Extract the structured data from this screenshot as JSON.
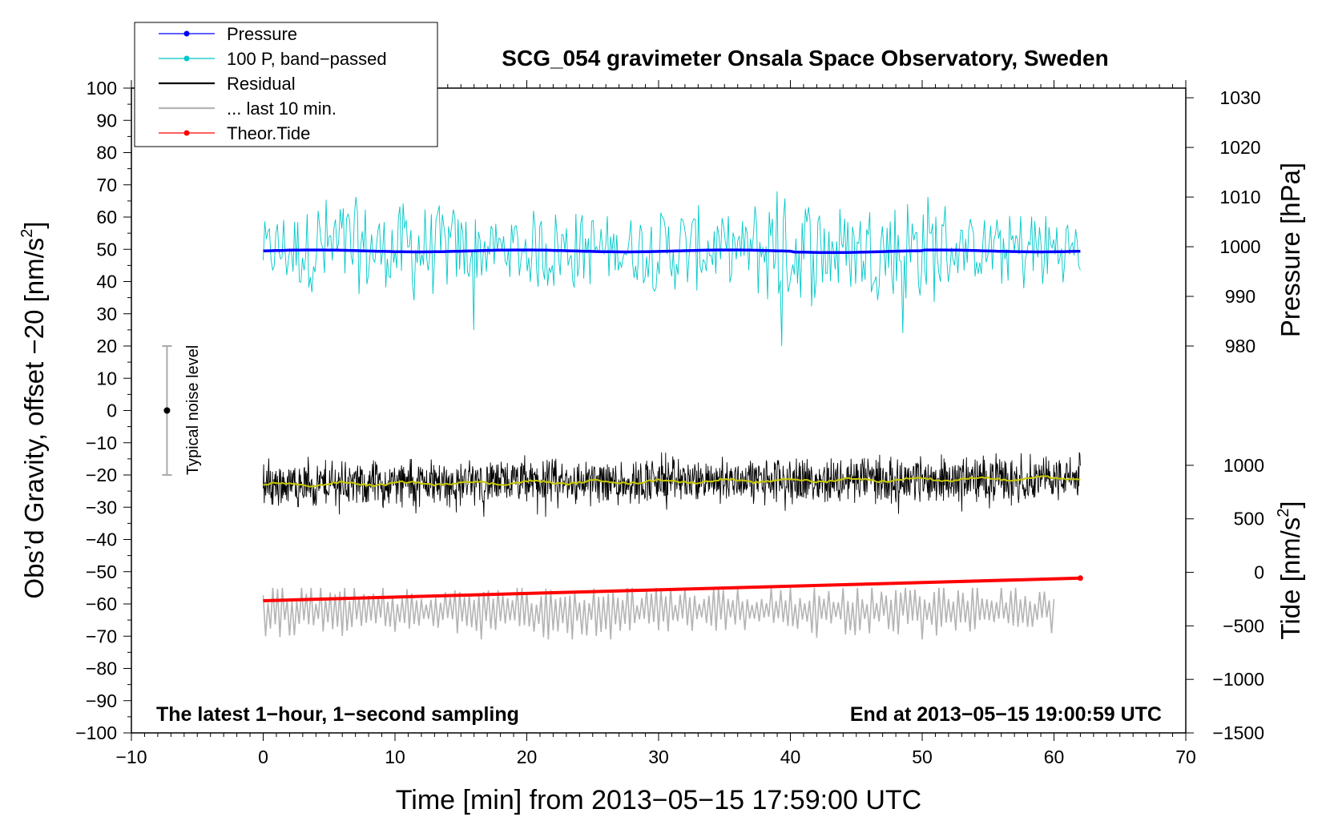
{
  "chart_data": {
    "type": "line",
    "title": "SCG_054 gravimeter Onsala Space Observatory, Sweden",
    "xlabel": "Time [min] from 2013−05−15 17:59:00 UTC",
    "ylabel_left": "Obs’d Gravity, offset −20 [nm/s",
    "ylabel_left_sup": "2",
    "ylabel_left_end": "]",
    "ylabel_right_pressure": "Pressure [hPa]",
    "ylabel_right_tide": "Tide [nm/s",
    "ylabel_right_tide_sup": "2",
    "ylabel_right_tide_end": "]",
    "xlim": [
      -10,
      70
    ],
    "ylim": [
      -100,
      100
    ],
    "xticks": [
      -10,
      0,
      10,
      20,
      30,
      40,
      50,
      60,
      70
    ],
    "yticks": [
      -100,
      -90,
      -80,
      -70,
      -60,
      -50,
      -40,
      -30,
      -20,
      -10,
      0,
      10,
      20,
      30,
      40,
      50,
      60,
      70,
      80,
      90,
      100
    ],
    "pressure_axis": {
      "ticks": [
        980,
        990,
        1000,
        1010,
        1020,
        1030
      ],
      "map": {
        "v1": 980,
        "y1": 20,
        "v2": 1030,
        "y2": 97
      }
    },
    "tide_axis": {
      "ticks": [
        -1500,
        -1000,
        -500,
        0,
        500,
        1000
      ],
      "map": {
        "v1": -1500,
        "y1": -100,
        "v2": 1000,
        "y2": -17
      }
    },
    "annotation_left": "The latest 1−hour, 1−second sampling",
    "annotation_right": "End at 2013−05−15 19:00:59 UTC",
    "noise_bar": {
      "label": "Typical noise level",
      "x": -7.3,
      "center": 0,
      "low": -20,
      "high": 20
    },
    "legend": [
      {
        "label": "Pressure",
        "color": "#0000ff",
        "marker": true
      },
      {
        "label": "100 P, band−passed",
        "color": "#00c8c8",
        "marker": true
      },
      {
        "label": "Residual",
        "color": "#000000",
        "marker": false
      },
      {
        "label": "... last 10 min.",
        "color": "#b4b4b4",
        "marker": false
      },
      {
        "label": "Theor.Tide",
        "color": "#ff0000",
        "marker": true
      }
    ],
    "series": [
      {
        "name": "Pressure",
        "color": "#0000ff",
        "x_range": [
          0,
          62
        ],
        "y_start": 49.5,
        "y_end": 49.5,
        "unit": "plot"
      },
      {
        "name": "100 P, band−passed",
        "color": "#00c8c8",
        "x_range": [
          0,
          62
        ],
        "center": 50,
        "y_min": 20,
        "y_max": 68,
        "peaks": [
          [
            16,
            25
          ],
          [
            39.3,
            20
          ],
          [
            39,
            68
          ],
          [
            48.5,
            24
          ]
        ]
      },
      {
        "name": "Residual",
        "color": "#000000",
        "x_range": [
          0,
          62
        ],
        "center_start": -23,
        "center_end": -21,
        "y_min": -33,
        "y_max": -13
      },
      {
        "name": "Residual smoothed",
        "color": "#c8c800",
        "x_range": [
          0,
          62
        ],
        "y_start": -23,
        "y_end": -21
      },
      {
        "name": "... last 10 min.",
        "color": "#b4b4b4",
        "x_range": [
          0,
          60
        ],
        "center": -62,
        "y_min": -71,
        "y_max": -55
      },
      {
        "name": "Theor.Tide",
        "color": "#ff0000",
        "x_range": [
          0,
          62
        ],
        "y_start": -59,
        "y_end": -52
      }
    ]
  }
}
